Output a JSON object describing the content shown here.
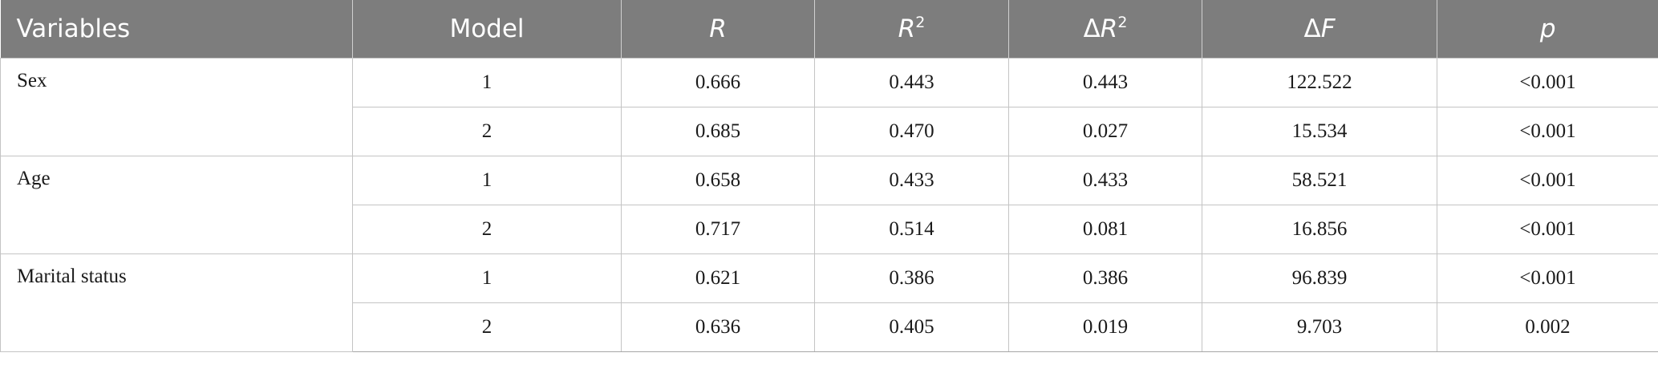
{
  "table": {
    "headers": {
      "variables": "Variables",
      "model": "Model",
      "r": "R",
      "r2_base": "R",
      "r2_sup": "2",
      "dr2_delta": "Δ",
      "dr2_base": "R",
      "dr2_sup": "2",
      "df_delta": "Δ",
      "df_base": "F",
      "p": "p"
    },
    "groups": [
      {
        "variable": "Sex",
        "rows": [
          {
            "model": "1",
            "r": "0.666",
            "r2": "0.443",
            "dr2": "0.443",
            "df": "122.522",
            "p": "<0.001"
          },
          {
            "model": "2",
            "r": "0.685",
            "r2": "0.470",
            "dr2": "0.027",
            "df": "15.534",
            "p": "<0.001"
          }
        ]
      },
      {
        "variable": "Age",
        "rows": [
          {
            "model": "1",
            "r": "0.658",
            "r2": "0.433",
            "dr2": "0.433",
            "df": "58.521",
            "p": "<0.001"
          },
          {
            "model": "2",
            "r": "0.717",
            "r2": "0.514",
            "dr2": "0.081",
            "df": "16.856",
            "p": "<0.001"
          }
        ]
      },
      {
        "variable": "Marital status",
        "rows": [
          {
            "model": "1",
            "r": "0.621",
            "r2": "0.386",
            "dr2": "0.386",
            "df": "96.839",
            "p": "<0.001"
          },
          {
            "model": "2",
            "r": "0.636",
            "r2": "0.405",
            "dr2": "0.019",
            "df": "9.703",
            "p": "0.002"
          }
        ]
      }
    ]
  }
}
